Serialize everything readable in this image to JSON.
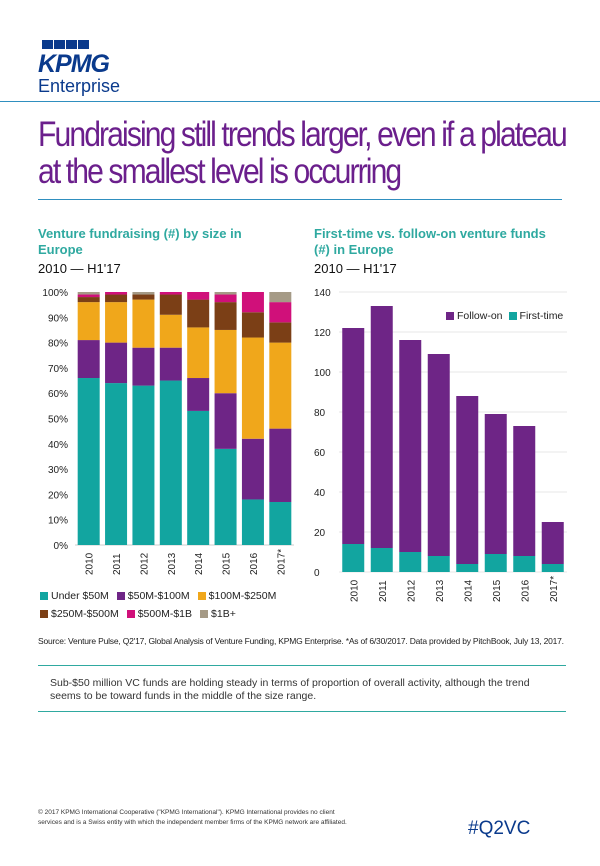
{
  "brand": {
    "logo_text": "KPMG",
    "sub": "Enterprise"
  },
  "headline": {
    "line1": "Fundraising still trends larger, even if a plateau",
    "line2": "at the smallest level is occurring"
  },
  "charts": {
    "left": {
      "title_line1": "Venture fundraising (#) by size in",
      "title_line2": "Europe",
      "period": "2010 — H1'17"
    },
    "right": {
      "title_line1": "First-time vs. follow-on venture funds",
      "title_line2": "(#) in Europe",
      "period": "2010 — H1'17"
    }
  },
  "source": "Source: Venture Pulse, Q2'17, Global Analysis of Venture Funding, KPMG Enterprise. *As of 6/30/2017. Data provided by PitchBook, July 13, 2017.",
  "note": "Sub-$50 million VC funds are holding steady in terms of proportion of overall activity, although the trend seems to be toward funds in the middle of the size range.",
  "footer": {
    "line1": "© 2017 KPMG International Cooperative (\"KPMG International\"). KPMG International provides no client",
    "line2": "services and is a Swiss entity with which the independent member firms of the KPMG network are affiliated."
  },
  "hashtag": "#Q2VC",
  "colors": {
    "teal": "#12a5a0",
    "purple": "#6e2586",
    "orange": "#f0a71b",
    "brown": "#7b3f16",
    "magenta": "#d0107a",
    "gray": "#a59a86"
  },
  "chart_data": [
    {
      "type": "bar",
      "stacked": true,
      "categories": [
        "2010",
        "2011",
        "2012",
        "2013",
        "2014",
        "2015",
        "2016",
        "2017*"
      ],
      "ylim": [
        0,
        100
      ],
      "yticks": [
        "0%",
        "10%",
        "20%",
        "30%",
        "40%",
        "50%",
        "60%",
        "70%",
        "80%",
        "90%",
        "100%"
      ],
      "series": [
        {
          "name": "Under $50M",
          "color": "#12a5a0",
          "values": [
            66,
            64,
            63,
            65,
            53,
            38,
            18,
            17
          ]
        },
        {
          "name": "$50M-$100M",
          "color": "#6e2586",
          "values": [
            15,
            16,
            15,
            13,
            13,
            22,
            24,
            29
          ]
        },
        {
          "name": "$100M-$250M",
          "color": "#f0a71b",
          "values": [
            15,
            16,
            19,
            13,
            20,
            25,
            40,
            34
          ]
        },
        {
          "name": "$250M-$500M",
          "color": "#7b3f16",
          "values": [
            2,
            3,
            2,
            8,
            11,
            11,
            10,
            8
          ]
        },
        {
          "name": "$500M-$1B",
          "color": "#d0107a",
          "values": [
            1,
            1,
            0,
            1,
            3,
            3,
            8,
            8
          ]
        },
        {
          "name": "$1B+",
          "color": "#a59a86",
          "values": [
            1,
            0,
            1,
            0,
            0,
            1,
            0,
            4
          ]
        }
      ],
      "legend_placement": "bottom"
    },
    {
      "type": "bar",
      "stacked": true,
      "categories": [
        "2010",
        "2011",
        "2012",
        "2013",
        "2014",
        "2015",
        "2016",
        "2017*"
      ],
      "ylim": [
        0,
        140
      ],
      "yticks": [
        "0",
        "20",
        "40",
        "60",
        "80",
        "100",
        "120",
        "140"
      ],
      "series": [
        {
          "name": "Follow-on",
          "color": "#6e2586",
          "values": [
            108,
            121,
            106,
            101,
            84,
            70,
            65,
            21
          ]
        },
        {
          "name": "First-time",
          "color": "#12a5a0",
          "values": [
            14,
            12,
            10,
            8,
            4,
            9,
            8,
            4
          ]
        }
      ],
      "legend_placement": "top-right",
      "grid": true
    }
  ]
}
